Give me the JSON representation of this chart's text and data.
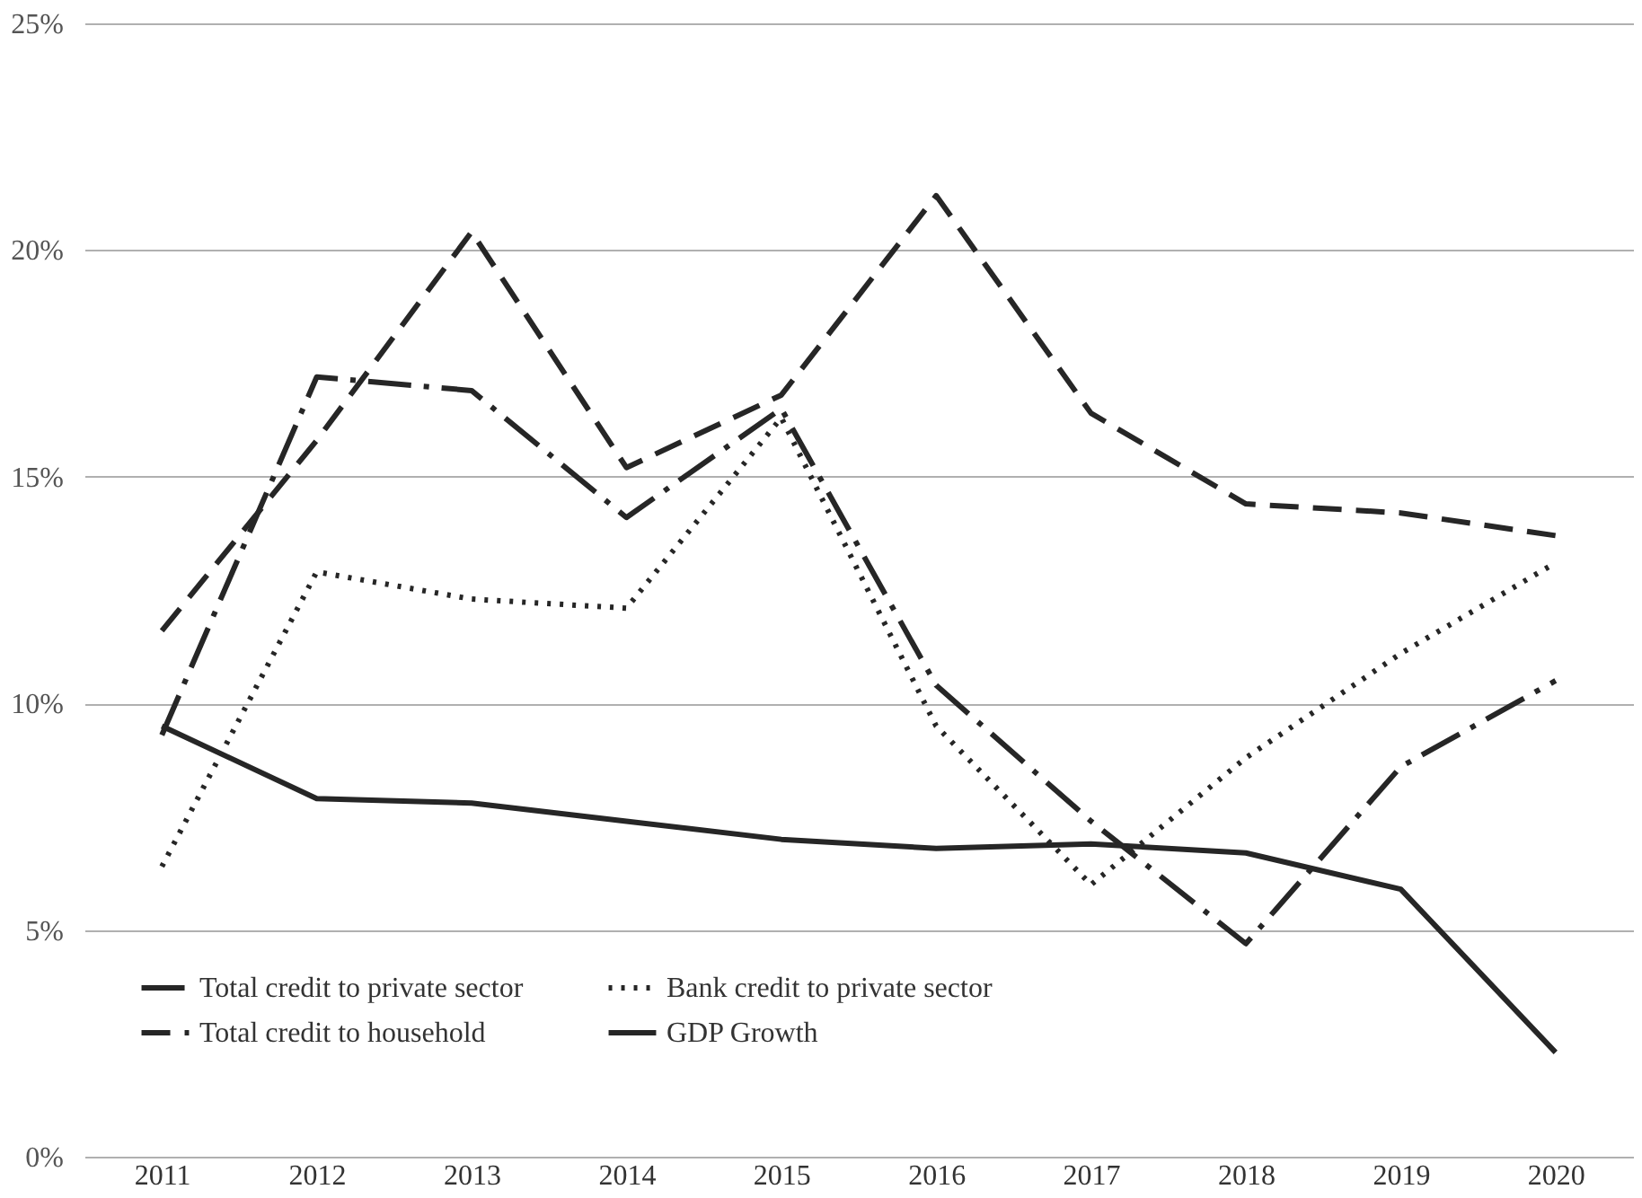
{
  "chart_data": {
    "type": "line",
    "categories": [
      "2011",
      "2012",
      "2013",
      "2014",
      "2015",
      "2016",
      "2017",
      "2018",
      "2019",
      "2020"
    ],
    "ylim": [
      0,
      25
    ],
    "yticks": [
      {
        "value": 0,
        "label": "0%"
      },
      {
        "value": 5,
        "label": "5%"
      },
      {
        "value": 10,
        "label": "10%"
      },
      {
        "value": 15,
        "label": "15%"
      },
      {
        "value": 20,
        "label": "20%"
      },
      {
        "value": 25,
        "label": "25%"
      }
    ],
    "grid": "y",
    "legend": "bottom",
    "marker": "none",
    "series": [
      {
        "name": "Total credit to private sector",
        "color": "#262626",
        "line_style": "dashdot",
        "values": [
          9.3,
          17.2,
          16.9,
          14.1,
          16.5,
          10.4,
          7.4,
          4.7,
          8.6,
          10.5
        ]
      },
      {
        "name": "Bank credit to private sector",
        "color": "#262626",
        "line_style": "dotted",
        "values": [
          6.4,
          12.9,
          12.3,
          12.1,
          16.3,
          9.5,
          6.0,
          8.8,
          11.1,
          13.1
        ]
      },
      {
        "name": "Total credit to household",
        "color": "#262626",
        "line_style": "dashed",
        "values": [
          11.6,
          15.8,
          20.4,
          15.2,
          16.8,
          21.2,
          16.4,
          14.4,
          14.2,
          13.7
        ]
      },
      {
        "name": "GDP Growth",
        "color": "#262626",
        "line_style": "solid",
        "values": [
          9.5,
          7.9,
          7.8,
          7.4,
          7.0,
          6.8,
          6.9,
          6.7,
          5.9,
          2.3
        ]
      }
    ]
  }
}
